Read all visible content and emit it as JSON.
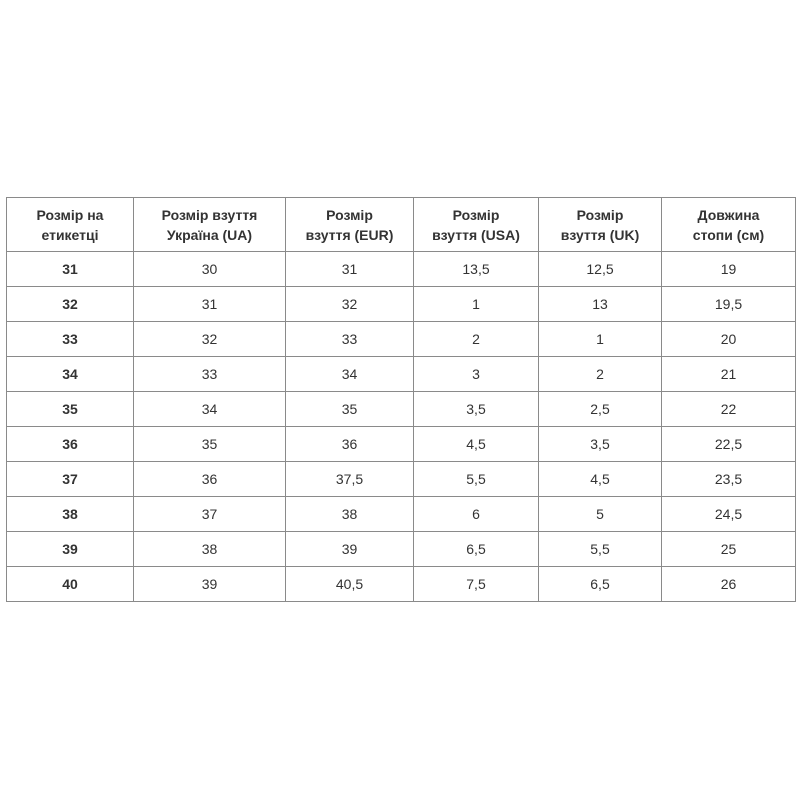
{
  "headers": [
    "Розмір на етикетці",
    "Розмір взуття Україна (UA)",
    "Розмір взуття (EUR)",
    "Розмір взуття (USA)",
    "Розмір взуття (UK)",
    "Довжина стопи (см)"
  ],
  "rows": [
    [
      "31",
      "30",
      "31",
      "13,5",
      "12,5",
      "19"
    ],
    [
      "32",
      "31",
      "32",
      "1",
      "13",
      "19,5"
    ],
    [
      "33",
      "32",
      "33",
      "2",
      "1",
      "20"
    ],
    [
      "34",
      "33",
      "34",
      "3",
      "2",
      "21"
    ],
    [
      "35",
      "34",
      "35",
      "3,5",
      "2,5",
      "22"
    ],
    [
      "36",
      "35",
      "36",
      "4,5",
      "3,5",
      "22,5"
    ],
    [
      "37",
      "36",
      "37,5",
      "5,5",
      "4,5",
      "23,5"
    ],
    [
      "38",
      "37",
      "38",
      "6",
      "5",
      "24,5"
    ],
    [
      "39",
      "38",
      "39",
      "6,5",
      "5,5",
      "25"
    ],
    [
      "40",
      "39",
      "40,5",
      "7,5",
      "6,5",
      "26"
    ]
  ]
}
